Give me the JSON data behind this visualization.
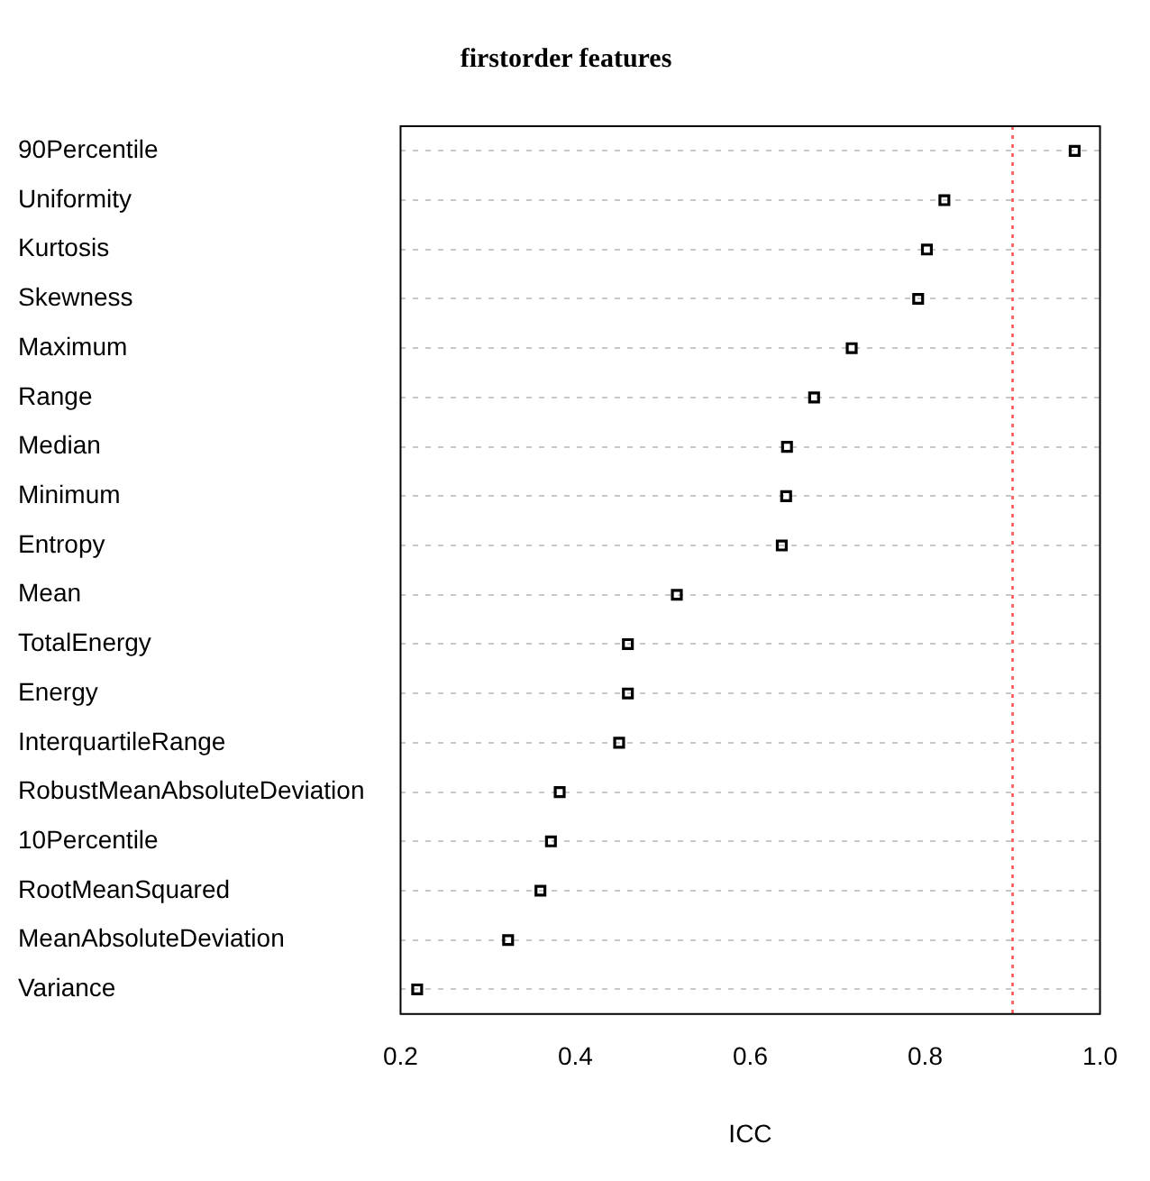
{
  "chart_data": {
    "type": "scatter",
    "orientation": "horizontal",
    "title": "firstorder features",
    "xlabel": "ICC",
    "categories": [
      "90Percentile",
      "Uniformity",
      "Kurtosis",
      "Skewness",
      "Maximum",
      "Range",
      "Median",
      "Minimum",
      "Entropy",
      "Mean",
      "TotalEnergy",
      "Energy",
      "InterquartileRange",
      "RobustMeanAbsoluteDeviation",
      "10Percentile",
      "RootMeanSquared",
      "MeanAbsoluteDeviation",
      "Variance"
    ],
    "values": [
      0.971,
      0.822,
      0.802,
      0.792,
      0.716,
      0.673,
      0.642,
      0.641,
      0.636,
      0.516,
      0.46,
      0.46,
      0.45,
      0.382,
      0.372,
      0.36,
      0.323,
      0.219
    ],
    "color": "#000000",
    "marker": "square",
    "grid": "y",
    "legend": false,
    "xlim": [
      0.2,
      1.0
    ],
    "xticks": [
      {
        "value": 0.2,
        "label": "0.2"
      },
      {
        "value": 0.4,
        "label": "0.4"
      },
      {
        "value": 0.6,
        "label": "0.6"
      },
      {
        "value": 0.8,
        "label": "0.8"
      },
      {
        "value": 1.0,
        "label": "1.0"
      }
    ],
    "ref_lines": [
      {
        "axis": "x",
        "value": 0.9,
        "color": "#ff5555",
        "line_style": "dotted"
      }
    ]
  }
}
